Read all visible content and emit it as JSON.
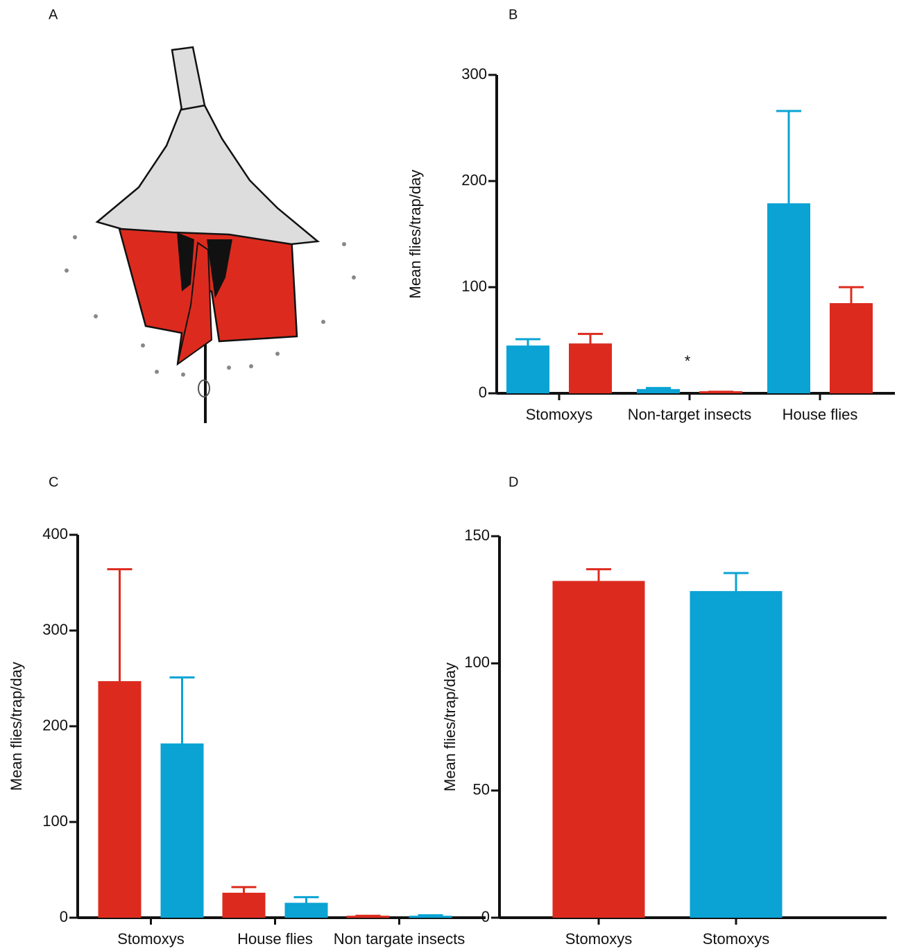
{
  "panel_labels": [
    "A",
    "B",
    "C",
    "D"
  ],
  "chart_data": [
    {
      "type": "bar",
      "ylabel": "Mean flies/trap/day",
      "categories": [
        "Stomoxys",
        "Non-target insects",
        "House flies"
      ],
      "series": [
        {
          "color": "#0aa3d4",
          "values": [
            44,
            3,
            178
          ],
          "errors": [
            7,
            2,
            88
          ]
        },
        {
          "color": "#dc2b1e",
          "values": [
            46,
            1,
            84
          ],
          "errors": [
            10,
            0.5,
            16
          ]
        }
      ],
      "annotation": "*",
      "ylim": [
        0,
        300
      ],
      "yticks": [
        0,
        100,
        200,
        300
      ]
    },
    {
      "type": "bar",
      "ylabel": "Mean flies/trap/day",
      "categories": [
        "Stomoxys",
        "House flies",
        "Non targate insects"
      ],
      "series": [
        {
          "color": "#dc2b1e",
          "values": [
            246,
            25,
            1
          ],
          "errors": [
            118,
            7,
            1
          ]
        },
        {
          "color": "#0aa3d4",
          "values": [
            181,
            14.5,
            1
          ],
          "errors": [
            70,
            7,
            1.5
          ]
        }
      ],
      "ylim": [
        0,
        400
      ],
      "yticks": [
        0,
        100,
        200,
        300,
        400
      ]
    },
    {
      "type": "bar",
      "ylabel": "Mean flies/trap/day",
      "categories": [
        "Stomoxys",
        "Stomoxys"
      ],
      "values": [
        132,
        128
      ],
      "errors": [
        5,
        7.5
      ],
      "colors": [
        "#dc2b1e",
        "#0aa3d4"
      ],
      "ylim": [
        0,
        150
      ],
      "yticks": [
        0,
        50,
        100,
        150
      ]
    }
  ]
}
